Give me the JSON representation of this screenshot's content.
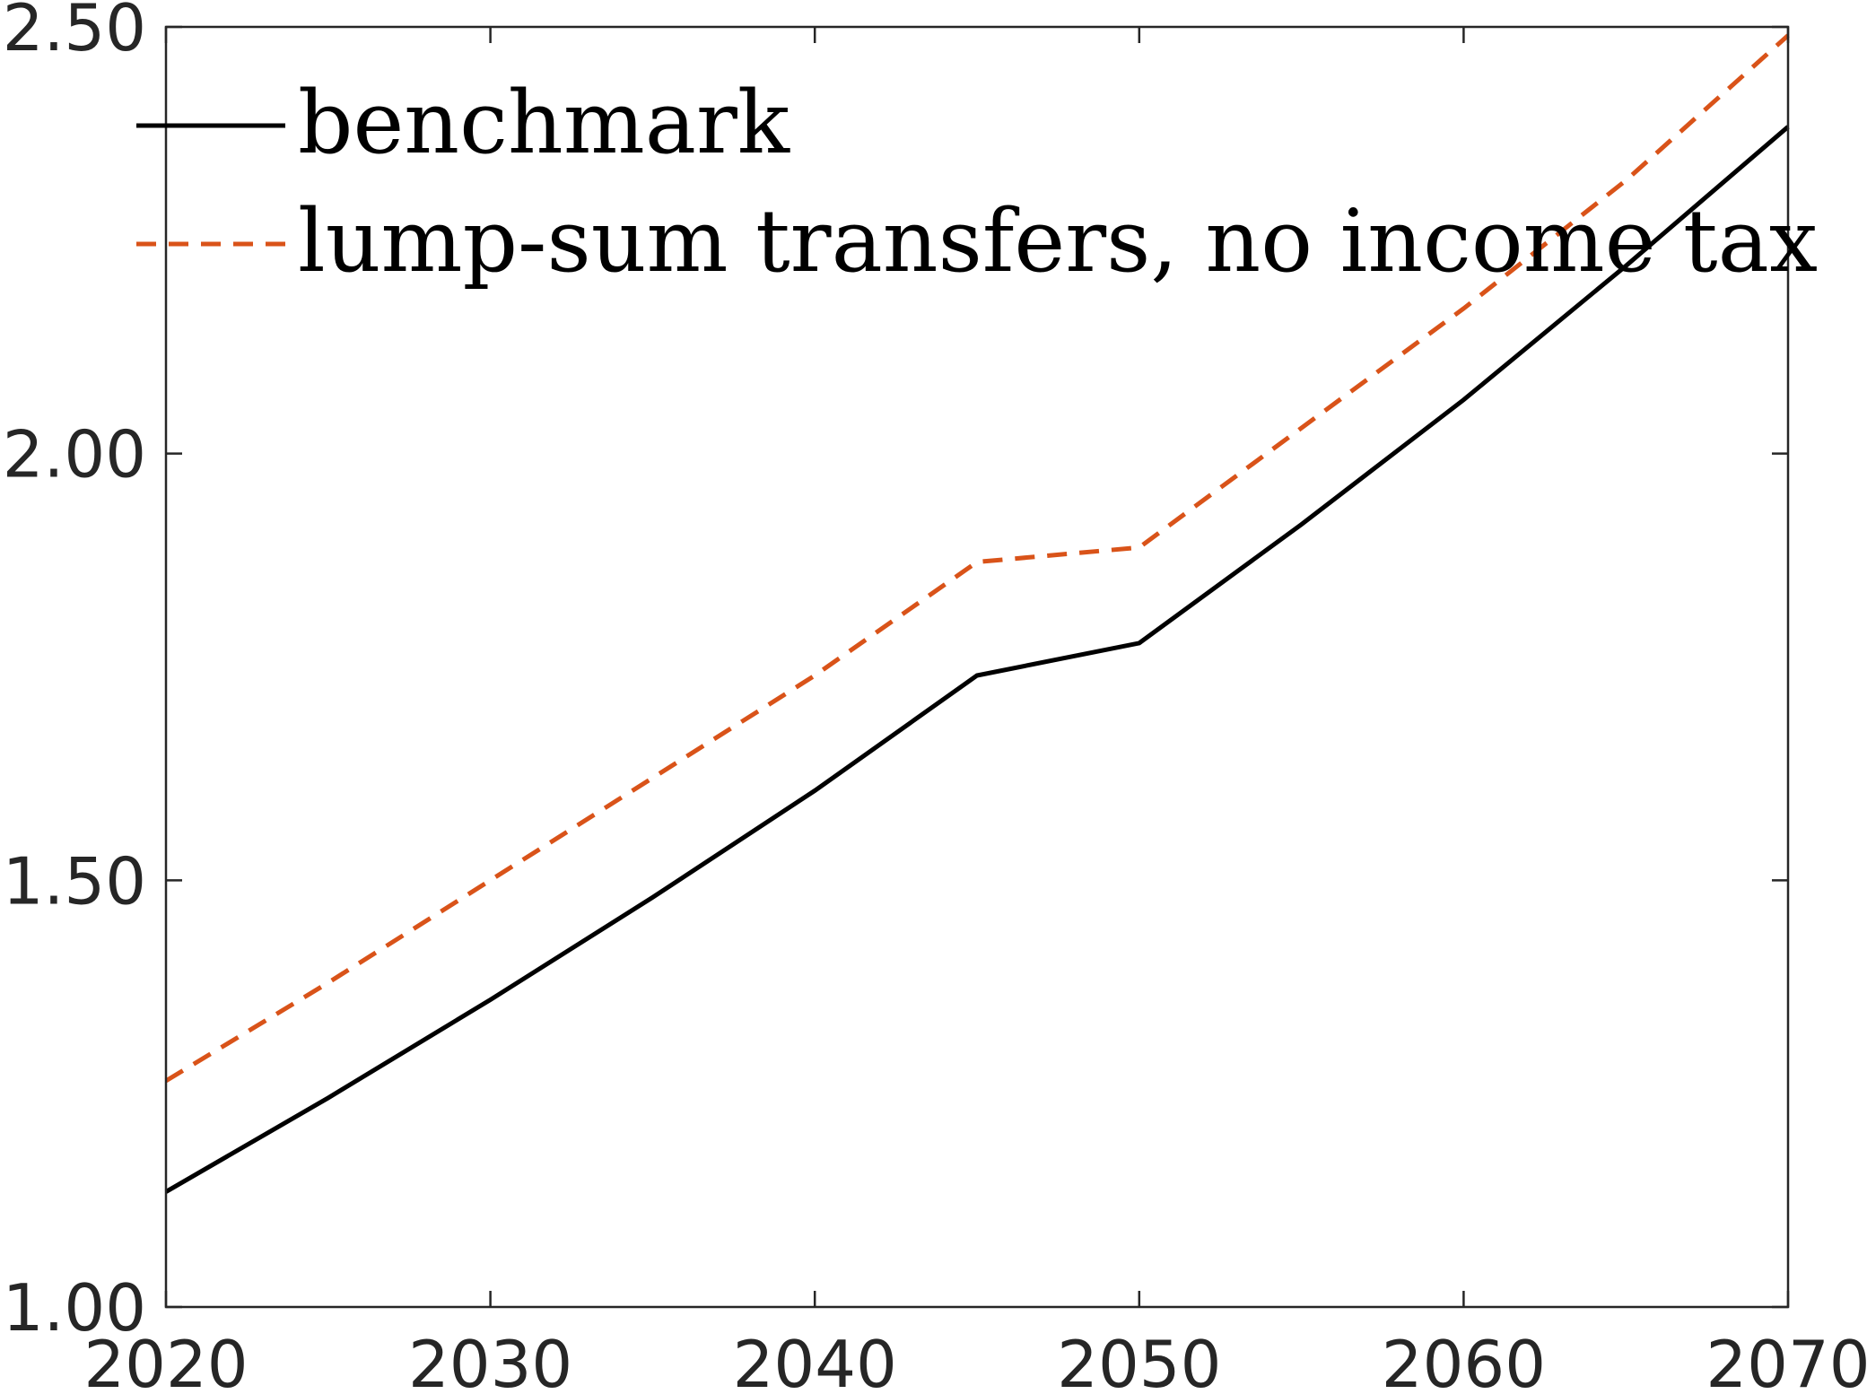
{
  "chart_data": {
    "type": "line",
    "title": "",
    "xlabel": "",
    "ylabel": "",
    "xlim": [
      2020,
      2070
    ],
    "ylim": [
      1.0,
      2.5
    ],
    "xticks": [
      "2020",
      "2030",
      "2040",
      "2050",
      "2060",
      "2070"
    ],
    "yticks": [
      "1.00",
      "1.50",
      "2.00",
      "2.50"
    ],
    "grid": false,
    "legend_position": "top-left",
    "series": [
      {
        "name": "benchmark",
        "color": "#000000",
        "style": "solid",
        "x": [
          2020,
          2025,
          2030,
          2035,
          2040,
          2045,
          2050,
          2055,
          2060,
          2065,
          2070
        ],
        "y": [
          1.135,
          1.245,
          1.36,
          1.48,
          1.605,
          1.74,
          1.778,
          1.917,
          2.063,
          2.22,
          2.383
        ]
      },
      {
        "name": "lump-sum transfers, no income tax",
        "color": "#D95319",
        "style": "dashed",
        "x": [
          2020,
          2025,
          2030,
          2035,
          2040,
          2045,
          2050,
          2055,
          2060,
          2065,
          2070
        ],
        "y": [
          1.265,
          1.38,
          1.5,
          1.62,
          1.74,
          1.873,
          1.89,
          2.03,
          2.17,
          2.32,
          2.49
        ]
      }
    ]
  }
}
